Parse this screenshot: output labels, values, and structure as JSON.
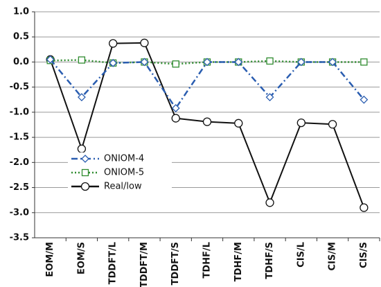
{
  "chart_data": {
    "type": "line",
    "categories": [
      "EOM/M",
      "EOM/S",
      "TDDFT/L",
      "TDDFT/M",
      "TDDFT/S",
      "TDHF/L",
      "TDHF/M",
      "TDHF/S",
      "CIS/L",
      "CIS/M",
      "CIS/S"
    ],
    "series": [
      {
        "name": "ONIOM-4",
        "color": "#2a5db0",
        "values": [
          0.05,
          -0.7,
          -0.02,
          0.0,
          -0.92,
          0.0,
          0.0,
          -0.7,
          0.0,
          0.0,
          -0.75
        ]
      },
      {
        "name": "ONIOM-5",
        "color": "#2e8b2e",
        "values": [
          0.03,
          0.04,
          -0.02,
          0.0,
          -0.04,
          0.0,
          0.0,
          0.02,
          0.0,
          0.0,
          0.0
        ]
      },
      {
        "name": "Real/low",
        "color": "#111111",
        "values": [
          0.05,
          -1.73,
          0.37,
          0.38,
          -1.12,
          -1.19,
          -1.22,
          -2.8,
          -1.21,
          -1.24,
          -2.9
        ]
      }
    ],
    "ylim": [
      -3.5,
      1.0
    ],
    "yticks": [
      {
        "value": -3.5,
        "label": "-3.5"
      },
      {
        "value": -3,
        "label": "-3.0"
      },
      {
        "value": -2.5,
        "label": "-2.5"
      },
      {
        "value": -2,
        "label": "-2.0"
      },
      {
        "value": -1.5,
        "label": "-1.5"
      },
      {
        "value": -1,
        "label": "-1.0"
      },
      {
        "value": -0.5,
        "label": "-0.5"
      },
      {
        "value": 0,
        "label": "0.0"
      },
      {
        "value": 0.5,
        "label": "0.5"
      },
      {
        "value": 1,
        "label": "1.0"
      }
    ],
    "grid": true
  }
}
